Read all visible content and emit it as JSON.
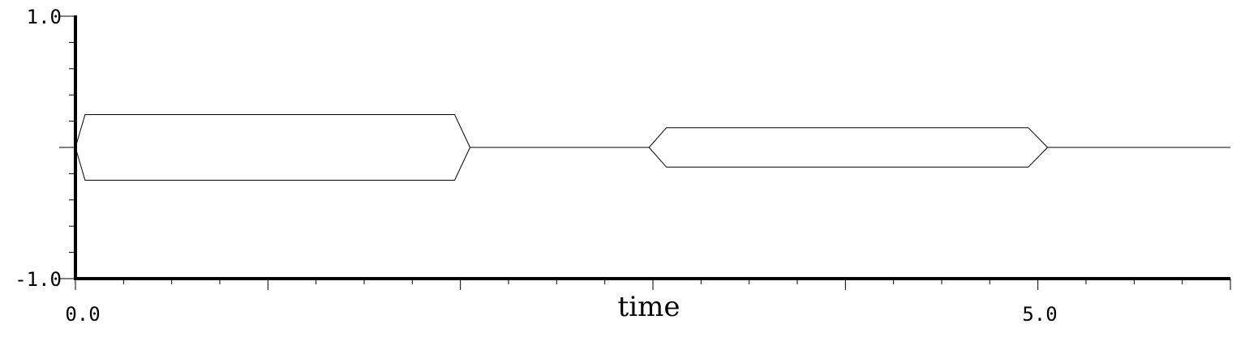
{
  "chart_data": {
    "type": "line",
    "title": "",
    "xlabel": "time",
    "ylabel": "",
    "xlim": [
      0.0,
      6.0
    ],
    "ylim": [
      -1.0,
      1.0
    ],
    "x_tick_labels": [
      "0.0",
      "5.0"
    ],
    "y_tick_labels": [
      "1.0",
      "-1.0"
    ],
    "grid": false,
    "series": [
      {
        "style": "amplitude-envelope",
        "color": "#000000",
        "segments": [
          {
            "x": [
              0.0,
              0.05,
              1.97,
              2.05
            ],
            "upper": [
              0.0,
              0.25,
              0.25,
              0.0
            ],
            "lower": [
              0.0,
              -0.25,
              -0.25,
              0.0
            ]
          },
          {
            "x": [
              2.05,
              2.98
            ],
            "upper": [
              0.0,
              0.0
            ],
            "lower": [
              0.0,
              0.0
            ]
          },
          {
            "x": [
              2.98,
              3.07,
              4.95,
              5.05
            ],
            "upper": [
              0.0,
              0.15,
              0.15,
              0.0
            ],
            "lower": [
              0.0,
              -0.15,
              -0.15,
              0.0
            ]
          },
          {
            "x": [
              5.05,
              6.0
            ],
            "upper": [
              0.0,
              0.0
            ],
            "lower": [
              0.0,
              0.0
            ]
          }
        ]
      }
    ]
  }
}
